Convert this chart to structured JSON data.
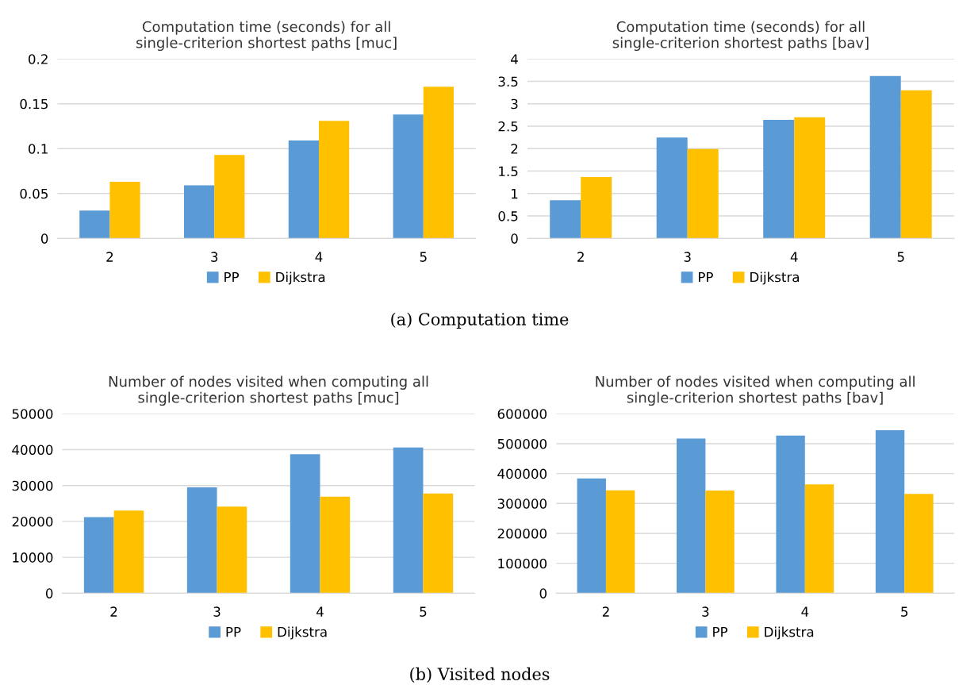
{
  "chart_data": [
    {
      "type": "bar",
      "title": "Computation time (seconds) for all\nsingle-criterion shortest paths [muc]",
      "categories": [
        "2",
        "3",
        "4",
        "5"
      ],
      "series": [
        {
          "name": "PP",
          "color": "#5b9bd5",
          "values": [
            0.031,
            0.059,
            0.109,
            0.138
          ]
        },
        {
          "name": "Dijkstra",
          "color": "#ffc000",
          "values": [
            0.063,
            0.093,
            0.131,
            0.169
          ]
        }
      ],
      "ylim": [
        0,
        0.2
      ],
      "yticks": [
        0,
        0.05,
        0.1,
        0.15,
        0.2
      ],
      "grid": "y",
      "legend": "bottom"
    },
    {
      "type": "bar",
      "title": "Computation time (seconds) for all\nsingle-criterion shortest paths [bav]",
      "categories": [
        "2",
        "3",
        "4",
        "5"
      ],
      "series": [
        {
          "name": "PP",
          "color": "#5b9bd5",
          "values": [
            0.85,
            2.25,
            2.64,
            3.62
          ]
        },
        {
          "name": "Dijkstra",
          "color": "#ffc000",
          "values": [
            1.37,
            1.99,
            2.7,
            3.3
          ]
        }
      ],
      "ylim": [
        0,
        4
      ],
      "yticks": [
        0,
        0.5,
        1,
        1.5,
        2,
        2.5,
        3,
        3.5,
        4
      ],
      "grid": "y",
      "legend": "bottom",
      "annotations": [
        "(a) Computation time"
      ]
    },
    {
      "type": "bar",
      "title": "Number of nodes visited when computing all\nsingle-criterion shortest paths [muc]",
      "categories": [
        "2",
        "3",
        "4",
        "5"
      ],
      "series": [
        {
          "name": "PP",
          "color": "#5b9bd5",
          "values": [
            21200,
            29500,
            38700,
            40600
          ]
        },
        {
          "name": "Dijkstra",
          "color": "#ffc000",
          "values": [
            23000,
            24100,
            26900,
            27800
          ]
        }
      ],
      "ylim": [
        0,
        50000
      ],
      "yticks": [
        0,
        10000,
        20000,
        30000,
        40000,
        50000
      ],
      "grid": "y",
      "legend": "bottom"
    },
    {
      "type": "bar",
      "title": "Number of nodes visited when computing all\nsingle-criterion shortest paths [bav]",
      "categories": [
        "2",
        "3",
        "4",
        "5"
      ],
      "series": [
        {
          "name": "PP",
          "color": "#5b9bd5",
          "values": [
            384000,
            517000,
            527000,
            545000
          ]
        },
        {
          "name": "Dijkstra",
          "color": "#ffc000",
          "values": [
            344000,
            343000,
            364000,
            332000
          ]
        }
      ],
      "ylim": [
        0,
        600000
      ],
      "yticks": [
        0,
        100000,
        200000,
        300000,
        400000,
        500000,
        600000
      ],
      "grid": "y",
      "legend": "bottom",
      "annotations": [
        "(b) Visited nodes"
      ]
    }
  ]
}
